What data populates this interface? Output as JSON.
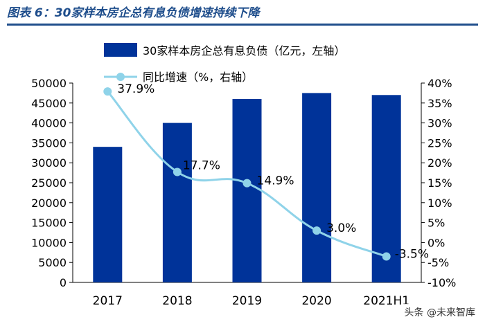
{
  "header": {
    "title": "图表 6：30家样本房企总有息负债增速持续下降"
  },
  "chart_data": {
    "type": "bar+line",
    "categories": [
      "2017",
      "2018",
      "2019",
      "2020",
      "2021H1"
    ],
    "series": [
      {
        "name": "30家样本房企总有息负债（亿元，左轴）",
        "type": "bar",
        "axis": "left",
        "values": [
          34000,
          40000,
          46000,
          47500,
          47000
        ],
        "color": "#003399"
      },
      {
        "name": "同比增速（%，右轴）",
        "type": "line",
        "axis": "right",
        "values": [
          37.9,
          17.7,
          14.9,
          3.0,
          -3.5
        ],
        "labels": [
          "37.9%",
          "17.7%",
          "14.9%",
          "3.0%",
          "-3.5%"
        ],
        "color": "#8fd3e9"
      }
    ],
    "y_left": {
      "min": 0,
      "max": 50000,
      "step": 5000,
      "ticks": [
        "0",
        "5000",
        "10000",
        "15000",
        "20000",
        "25000",
        "30000",
        "35000",
        "40000",
        "45000",
        "50000"
      ]
    },
    "y_right": {
      "min": -10,
      "max": 40,
      "step": 5,
      "ticks": [
        "-10%",
        "-5%",
        "0%",
        "5%",
        "10%",
        "15%",
        "20%",
        "25%",
        "30%",
        "35%",
        "40%"
      ]
    },
    "x_labels": [
      "2017",
      "2018",
      "2019",
      "2020",
      "2021H1"
    ]
  },
  "watermark": "头条 @未来智库"
}
